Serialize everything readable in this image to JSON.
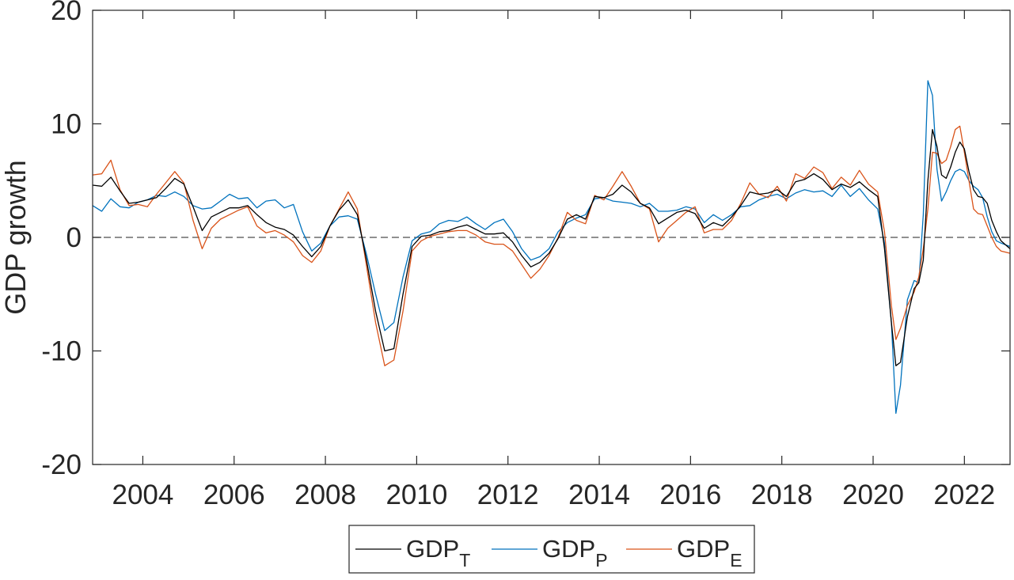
{
  "chart_data": {
    "type": "line",
    "title": "",
    "xlabel": "",
    "ylabel": "GDP growth",
    "xlim": [
      2002.9,
      2023.0
    ],
    "ylim": [
      -20,
      20
    ],
    "xticks": [
      "2004",
      "2006",
      "2008",
      "2010",
      "2012",
      "2014",
      "2016",
      "2018",
      "2020",
      "2022"
    ],
    "yticks": [
      "-20",
      "-10",
      "0",
      "10",
      "20"
    ],
    "reference_line": {
      "y": 0,
      "style": "dashed"
    },
    "grid": false,
    "legend": {
      "placement": "bottom-outside",
      "entries": [
        {
          "base": "GDP",
          "sub": "T"
        },
        {
          "base": "GDP",
          "sub": "P"
        },
        {
          "base": "GDP",
          "sub": "E"
        }
      ]
    },
    "series": [
      {
        "key": "GDP_T",
        "color": "#000000",
        "x": [
          2002.9,
          2003.1,
          2003.3,
          2003.5,
          2003.7,
          2003.9,
          2004.1,
          2004.3,
          2004.5,
          2004.7,
          2004.9,
          2005.1,
          2005.3,
          2005.5,
          2005.7,
          2005.9,
          2006.1,
          2006.3,
          2006.5,
          2006.7,
          2006.9,
          2007.1,
          2007.3,
          2007.5,
          2007.7,
          2007.9,
          2008.1,
          2008.3,
          2008.5,
          2008.7,
          2008.9,
          2009.1,
          2009.3,
          2009.5,
          2009.7,
          2009.9,
          2010.1,
          2010.3,
          2010.5,
          2010.7,
          2010.9,
          2011.1,
          2011.3,
          2011.5,
          2011.7,
          2011.9,
          2012.1,
          2012.3,
          2012.5,
          2012.7,
          2012.9,
          2013.1,
          2013.3,
          2013.5,
          2013.7,
          2013.9,
          2014.1,
          2014.3,
          2014.5,
          2014.7,
          2014.9,
          2015.1,
          2015.3,
          2015.5,
          2015.7,
          2015.9,
          2016.1,
          2016.3,
          2016.5,
          2016.7,
          2016.9,
          2017.1,
          2017.3,
          2017.5,
          2017.7,
          2017.9,
          2018.1,
          2018.3,
          2018.5,
          2018.7,
          2018.9,
          2019.1,
          2019.3,
          2019.5,
          2019.7,
          2019.9,
          2020.1,
          2020.25,
          2020.4,
          2020.5,
          2020.6,
          2020.75,
          2020.9,
          2021.0,
          2021.1,
          2021.2,
          2021.3,
          2021.4,
          2021.5,
          2021.6,
          2021.7,
          2021.8,
          2021.9,
          2022.0,
          2022.1,
          2022.2,
          2022.3,
          2022.4,
          2022.5,
          2022.6,
          2022.7,
          2022.8,
          2023.0
        ],
        "y": [
          4.6,
          4.5,
          5.3,
          4.1,
          3.0,
          3.1,
          3.3,
          3.5,
          4.3,
          5.2,
          4.7,
          2.7,
          0.6,
          1.8,
          2.2,
          2.6,
          2.6,
          2.8,
          2.0,
          1.3,
          0.9,
          0.7,
          0.2,
          -0.8,
          -1.7,
          -0.8,
          1.0,
          2.4,
          3.3,
          2.0,
          -2.0,
          -6.5,
          -10.0,
          -9.8,
          -5.0,
          -0.8,
          0.1,
          0.2,
          0.5,
          0.6,
          0.9,
          1.1,
          0.7,
          0.3,
          0.3,
          0.4,
          -0.4,
          -1.6,
          -2.6,
          -2.2,
          -1.4,
          -0.1,
          1.6,
          2.0,
          1.6,
          3.6,
          3.5,
          3.8,
          4.6,
          4.0,
          3.0,
          2.6,
          1.2,
          1.7,
          2.2,
          2.4,
          2.1,
          0.8,
          1.3,
          1.0,
          1.8,
          2.8,
          4.0,
          3.8,
          3.9,
          4.2,
          3.6,
          4.9,
          5.1,
          5.6,
          5.1,
          4.2,
          4.7,
          4.4,
          4.9,
          4.2,
          3.6,
          -1.0,
          -7.5,
          -11.3,
          -11.0,
          -7.0,
          -4.5,
          -4.0,
          -2.0,
          5.0,
          9.5,
          8.0,
          5.5,
          5.2,
          6.2,
          7.5,
          8.4,
          7.8,
          5.8,
          4.2,
          3.6,
          3.5,
          3.0,
          1.5,
          0.5,
          -0.3,
          -1.0
        ]
      },
      {
        "key": "GDP_P",
        "color": "#0072BD",
        "x": [
          2002.9,
          2003.1,
          2003.3,
          2003.5,
          2003.7,
          2003.9,
          2004.1,
          2004.3,
          2004.5,
          2004.7,
          2004.9,
          2005.1,
          2005.3,
          2005.5,
          2005.7,
          2005.9,
          2006.1,
          2006.3,
          2006.5,
          2006.7,
          2006.9,
          2007.1,
          2007.3,
          2007.5,
          2007.7,
          2007.9,
          2008.1,
          2008.3,
          2008.5,
          2008.7,
          2008.9,
          2009.1,
          2009.3,
          2009.5,
          2009.7,
          2009.9,
          2010.1,
          2010.3,
          2010.5,
          2010.7,
          2010.9,
          2011.1,
          2011.3,
          2011.5,
          2011.7,
          2011.9,
          2012.1,
          2012.3,
          2012.5,
          2012.7,
          2012.9,
          2013.1,
          2013.3,
          2013.5,
          2013.7,
          2013.9,
          2014.1,
          2014.3,
          2014.5,
          2014.7,
          2014.9,
          2015.1,
          2015.3,
          2015.5,
          2015.7,
          2015.9,
          2016.1,
          2016.3,
          2016.5,
          2016.7,
          2016.9,
          2017.1,
          2017.3,
          2017.5,
          2017.7,
          2017.9,
          2018.1,
          2018.3,
          2018.5,
          2018.7,
          2018.9,
          2019.1,
          2019.3,
          2019.5,
          2019.7,
          2019.9,
          2020.1,
          2020.25,
          2020.4,
          2020.5,
          2020.6,
          2020.75,
          2020.9,
          2021.0,
          2021.1,
          2021.2,
          2021.3,
          2021.4,
          2021.5,
          2021.6,
          2021.7,
          2021.8,
          2021.9,
          2022.0,
          2022.1,
          2022.2,
          2022.3,
          2022.4,
          2022.5,
          2022.6,
          2022.7,
          2022.8,
          2023.0
        ],
        "y": [
          2.8,
          2.3,
          3.4,
          2.7,
          2.6,
          3.1,
          3.3,
          3.7,
          3.6,
          4.0,
          3.6,
          2.8,
          2.5,
          2.6,
          3.2,
          3.8,
          3.4,
          3.5,
          2.6,
          3.2,
          3.3,
          2.6,
          2.9,
          0.5,
          -1.2,
          -0.5,
          1.0,
          1.8,
          1.9,
          1.6,
          -1.5,
          -5.0,
          -8.2,
          -7.5,
          -3.5,
          -0.3,
          0.3,
          0.5,
          1.2,
          1.5,
          1.4,
          1.8,
          1.2,
          0.7,
          1.3,
          1.6,
          0.5,
          -1.0,
          -2.0,
          -1.7,
          -1.0,
          0.5,
          1.3,
          1.7,
          2.0,
          3.4,
          3.5,
          3.2,
          3.1,
          3.0,
          2.7,
          3.0,
          2.3,
          2.3,
          2.4,
          2.7,
          2.5,
          1.3,
          2.0,
          1.5,
          2.0,
          2.7,
          2.8,
          3.3,
          3.6,
          3.8,
          3.4,
          3.9,
          4.2,
          4.0,
          4.1,
          3.6,
          4.6,
          3.6,
          4.3,
          3.3,
          2.5,
          -0.5,
          -7.5,
          -15.5,
          -13.0,
          -5.5,
          -3.8,
          -4.0,
          2.0,
          13.8,
          12.5,
          6.0,
          3.2,
          4.0,
          5.0,
          5.8,
          6.0,
          5.8,
          5.0,
          4.5,
          4.2,
          3.5,
          1.8,
          0.5,
          -0.3,
          -0.5,
          -0.8
        ]
      },
      {
        "key": "GDP_E",
        "color": "#D95319",
        "x": [
          2002.9,
          2003.1,
          2003.3,
          2003.5,
          2003.7,
          2003.9,
          2004.1,
          2004.3,
          2004.5,
          2004.7,
          2004.9,
          2005.1,
          2005.3,
          2005.5,
          2005.7,
          2005.9,
          2006.1,
          2006.3,
          2006.5,
          2006.7,
          2006.9,
          2007.1,
          2007.3,
          2007.5,
          2007.7,
          2007.9,
          2008.1,
          2008.3,
          2008.5,
          2008.7,
          2008.9,
          2009.1,
          2009.3,
          2009.5,
          2009.7,
          2009.9,
          2010.1,
          2010.3,
          2010.5,
          2010.7,
          2010.9,
          2011.1,
          2011.3,
          2011.5,
          2011.7,
          2011.9,
          2012.1,
          2012.3,
          2012.5,
          2012.7,
          2012.9,
          2013.1,
          2013.3,
          2013.5,
          2013.7,
          2013.9,
          2014.1,
          2014.3,
          2014.5,
          2014.7,
          2014.9,
          2015.1,
          2015.3,
          2015.5,
          2015.7,
          2015.9,
          2016.1,
          2016.3,
          2016.5,
          2016.7,
          2016.9,
          2017.1,
          2017.3,
          2017.5,
          2017.7,
          2017.9,
          2018.1,
          2018.3,
          2018.5,
          2018.7,
          2018.9,
          2019.1,
          2019.3,
          2019.5,
          2019.7,
          2019.9,
          2020.1,
          2020.25,
          2020.4,
          2020.5,
          2020.6,
          2020.75,
          2020.9,
          2021.0,
          2021.1,
          2021.2,
          2021.3,
          2021.4,
          2021.5,
          2021.6,
          2021.7,
          2021.8,
          2021.9,
          2022.0,
          2022.1,
          2022.2,
          2022.3,
          2022.4,
          2022.5,
          2022.6,
          2022.7,
          2022.8,
          2023.0
        ],
        "y": [
          5.5,
          5.6,
          6.8,
          4.2,
          2.8,
          2.9,
          2.7,
          3.8,
          4.8,
          5.8,
          4.8,
          1.5,
          -1.0,
          0.8,
          1.6,
          2.0,
          2.4,
          2.7,
          1.0,
          0.4,
          0.6,
          0.2,
          -0.4,
          -1.6,
          -2.2,
          -1.2,
          1.0,
          2.5,
          4.0,
          2.5,
          -2.5,
          -7.5,
          -11.3,
          -10.8,
          -6.5,
          -1.2,
          -0.3,
          0.1,
          0.3,
          0.5,
          0.6,
          0.6,
          0.2,
          -0.4,
          -0.6,
          -0.6,
          -1.2,
          -2.4,
          -3.6,
          -2.8,
          -1.6,
          0.0,
          2.2,
          1.5,
          1.2,
          3.7,
          3.3,
          4.5,
          5.8,
          4.5,
          3.0,
          2.5,
          -0.4,
          0.8,
          1.5,
          2.2,
          2.7,
          0.4,
          0.7,
          0.7,
          1.5,
          3.0,
          4.8,
          3.8,
          3.5,
          4.5,
          3.2,
          5.6,
          5.2,
          6.2,
          5.7,
          4.3,
          5.3,
          4.6,
          5.9,
          4.7,
          4.0,
          0.5,
          -6.0,
          -9.0,
          -8.0,
          -6.0,
          -4.8,
          -3.5,
          -1.0,
          2.5,
          7.5,
          7.4,
          6.5,
          6.8,
          8.0,
          9.5,
          9.8,
          7.5,
          5.0,
          2.5,
          2.1,
          2.0,
          1.0,
          0.0,
          -0.8,
          -1.2,
          -1.4
        ]
      }
    ]
  }
}
